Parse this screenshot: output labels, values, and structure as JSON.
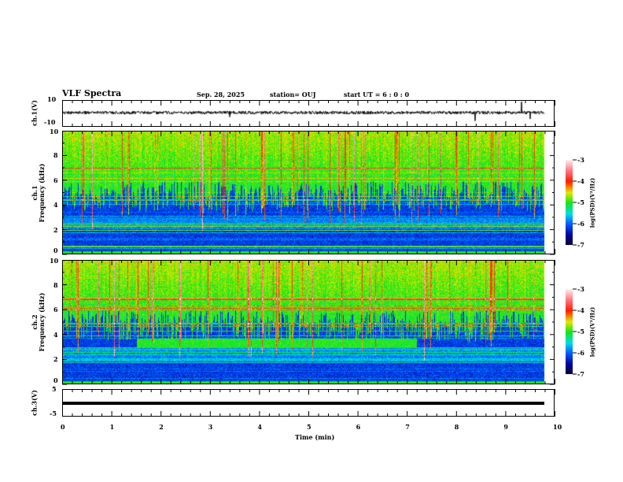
{
  "header": {
    "title": "VLF Spectra",
    "date": "Sep. 28, 2025",
    "station": "station= OUJ",
    "start": "start  UT =   6  : 0  : 0"
  },
  "chart_data": [
    {
      "type": "line",
      "name": "ch1-waveform",
      "ylabel": "ch.1(V)",
      "ylim": [
        -10,
        10
      ],
      "yticks": [
        "10",
        "-10"
      ],
      "xlim": [
        0,
        10
      ]
    },
    {
      "type": "heatmap",
      "name": "ch1-spectrogram",
      "ylabel": "ch.1 Frequency (kHz)",
      "ylim": [
        0,
        10
      ],
      "yticks": [
        "0",
        "2",
        "4",
        "6",
        "8",
        "10"
      ],
      "xlim": [
        0,
        10
      ],
      "data_end_min": 9.8,
      "colorbar": {
        "label": "log(PSD)(V²/Hz)",
        "range": [
          -7,
          -3
        ],
        "ticks": [
          "-3",
          "-4",
          "-5",
          "-6",
          "-7"
        ]
      }
    },
    {
      "type": "heatmap",
      "name": "ch2-spectrogram",
      "ylabel": "ch.2 Frequency (kHz)",
      "ylim": [
        0,
        10
      ],
      "yticks": [
        "0",
        "2",
        "4",
        "6",
        "8",
        "10"
      ],
      "xlim": [
        0,
        10
      ],
      "data_end_min": 9.8,
      "colorbar": {
        "label": "log(PSD)(V²/Hz)",
        "range": [
          -7,
          -3
        ],
        "ticks": [
          "-3",
          "-4",
          "-5",
          "-6",
          "-7"
        ]
      }
    },
    {
      "type": "line",
      "name": "ch3-waveform",
      "ylabel": "ch.3(V)",
      "ylim": [
        -5,
        5
      ],
      "yticks": [
        "5",
        "-5"
      ],
      "xlim": [
        0,
        10
      ],
      "constant_value": -1
    }
  ],
  "xaxis": {
    "label": "Time (min)",
    "ticks": [
      "0",
      "1",
      "2",
      "3",
      "4",
      "5",
      "6",
      "7",
      "8",
      "9",
      "10"
    ]
  }
}
